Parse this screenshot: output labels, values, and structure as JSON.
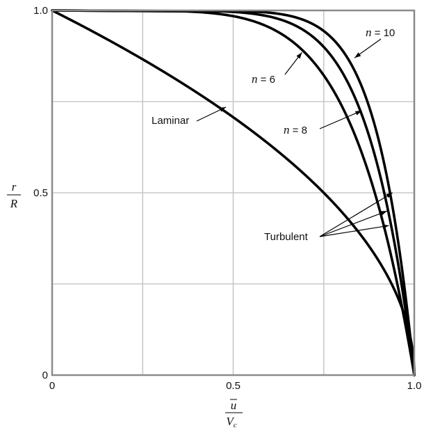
{
  "chart_data": {
    "type": "line",
    "xlim": [
      0,
      1.0
    ],
    "ylim": [
      0,
      1.0
    ],
    "grid": true,
    "x_ticks": [
      {
        "value": 0,
        "label": "0"
      },
      {
        "value": 0.5,
        "label": "0.5"
      },
      {
        "value": 1.0,
        "label": "1.0"
      }
    ],
    "y_ticks": [
      {
        "value": 0,
        "label": "0"
      },
      {
        "value": 0.5,
        "label": "0.5"
      },
      {
        "value": 1.0,
        "label": "1.0"
      }
    ],
    "grid_x": [
      0.25,
      0.5,
      0.75
    ],
    "grid_y": [
      0.25,
      0.5,
      0.75
    ],
    "xlabel": {
      "numerator": "u",
      "denominator": "V",
      "subscript": "c"
    },
    "ylabel": {
      "numerator": "r",
      "denominator": "R"
    },
    "series": [
      {
        "id": "laminar",
        "formula": "u/Vc = 1 - (r/R)^2",
        "n": null
      },
      {
        "id": "n6",
        "formula": "u/Vc = (1 - r/R)^(1/n)",
        "n": 6
      },
      {
        "id": "n8",
        "formula": "u/Vc = (1 - r/R)^(1/n)",
        "n": 8
      },
      {
        "id": "n10",
        "formula": "u/Vc = (1 - r/R)^(1/n)",
        "n": 10
      }
    ],
    "annotations": [
      {
        "id": "laminar",
        "label": "Laminar",
        "target": [
          0.48,
          0.735
        ]
      },
      {
        "id": "n6",
        "label": "n = 6",
        "italic_var": "n",
        "rest": " = 6",
        "target": [
          0.69,
          0.885
        ]
      },
      {
        "id": "n8",
        "label": "n = 8",
        "italic_var": "n",
        "rest": " = 8",
        "target": [
          0.855,
          0.725
        ]
      },
      {
        "id": "n10",
        "label": "n = 10",
        "italic_var": "n",
        "rest": " = 10",
        "target": [
          0.835,
          0.87
        ]
      },
      {
        "id": "turbulent",
        "label": "Turbulent",
        "targets": [
          [
            0.94,
            0.5
          ],
          [
            0.925,
            0.45
          ],
          [
            0.93,
            0.41
          ]
        ]
      }
    ]
  }
}
